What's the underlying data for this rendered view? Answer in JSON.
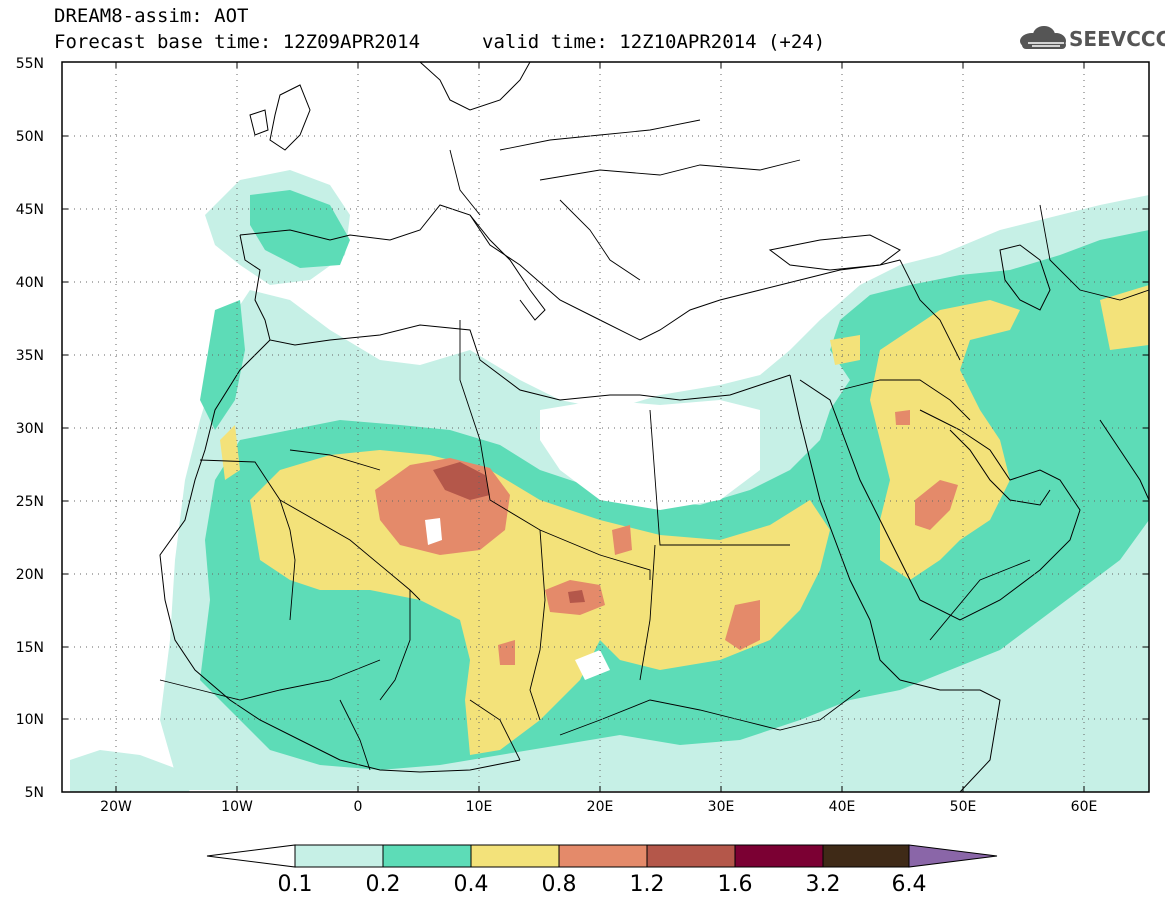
{
  "header": {
    "title": "DREAM8-assim: AOT",
    "base_time": "Forecast base time: 12Z09APR2014",
    "valid_time": "valid time: 12Z10APR2014 (+24)"
  },
  "logo": {
    "text": "SEEVCCC",
    "icon": "cloud-icon"
  },
  "map": {
    "lon_labels": [
      "20W",
      "10W",
      "0",
      "10E",
      "20E",
      "30E",
      "40E",
      "50E",
      "60E"
    ],
    "lat_labels": [
      "55N",
      "50N",
      "45N",
      "40N",
      "35N",
      "30N",
      "25N",
      "20N",
      "15N",
      "10N",
      "5N"
    ],
    "extent": {
      "lon": [
        -25,
        65
      ],
      "lat": [
        5,
        55
      ]
    }
  },
  "colorbar": {
    "labels": [
      "0.1",
      "0.2",
      "0.4",
      "0.8",
      "1.2",
      "1.6",
      "3.2",
      "6.4"
    ],
    "colors": [
      "#ffffff",
      "#c6f0e6",
      "#5ddcb7",
      "#f3e27a",
      "#e48a6a",
      "#b4574a",
      "#7b0033",
      "#3f2a17",
      "#8a66a8"
    ]
  },
  "field_colors": {
    "c01": "#c6f0e6",
    "c02": "#5ddcb7",
    "c04": "#f3e27a",
    "c08": "#e48a6a",
    "c12": "#b4574a",
    "c16": "#7b0033"
  }
}
